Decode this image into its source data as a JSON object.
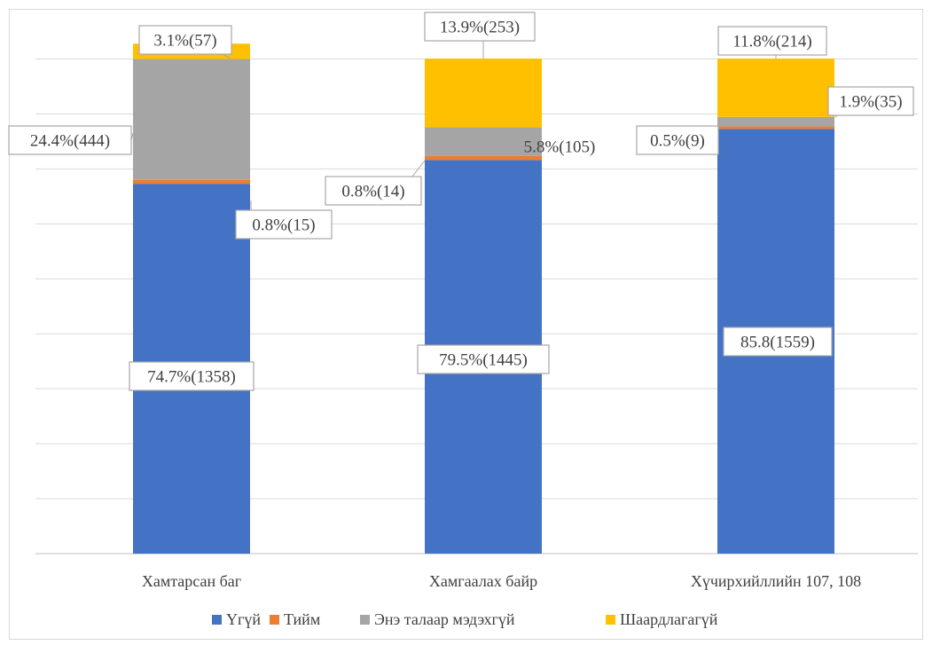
{
  "chart_data": {
    "type": "bar",
    "stacked": true,
    "title": "",
    "xlabel": "",
    "ylabel": "",
    "ylim": [
      0,
      100
    ],
    "grid": true,
    "legend_position": "bottom",
    "categories": [
      "Хамтарсан баг",
      "Хамгаалах байр",
      "Хүчирхийллийн 107, 108"
    ],
    "series": [
      {
        "name": "Үгүй",
        "color": "#4472C4",
        "values": [
          74.7,
          79.5,
          85.8
        ],
        "labels": [
          "74.7%(1358)",
          "79.5%(1445)",
          "85.8(1559)"
        ]
      },
      {
        "name": "Тийм",
        "color": "#ED7D31",
        "values": [
          0.8,
          0.8,
          0.5
        ],
        "labels": [
          "0.8%(15)",
          "0.8%(14)",
          "0.5%(9)"
        ]
      },
      {
        "name": "Энэ талаар мэдэхгүй",
        "color": "#A5A5A5",
        "values": [
          24.4,
          5.8,
          1.9
        ],
        "labels": [
          "24.4%(444)",
          "5.8%(105)",
          "1.9%(35)"
        ]
      },
      {
        "name": "Шаардлагагүй",
        "color": "#FFC000",
        "values": [
          3.1,
          13.9,
          11.8
        ],
        "labels": [
          "3.1%(57)",
          "13.9%(253)",
          "11.8%(214)"
        ]
      }
    ]
  }
}
